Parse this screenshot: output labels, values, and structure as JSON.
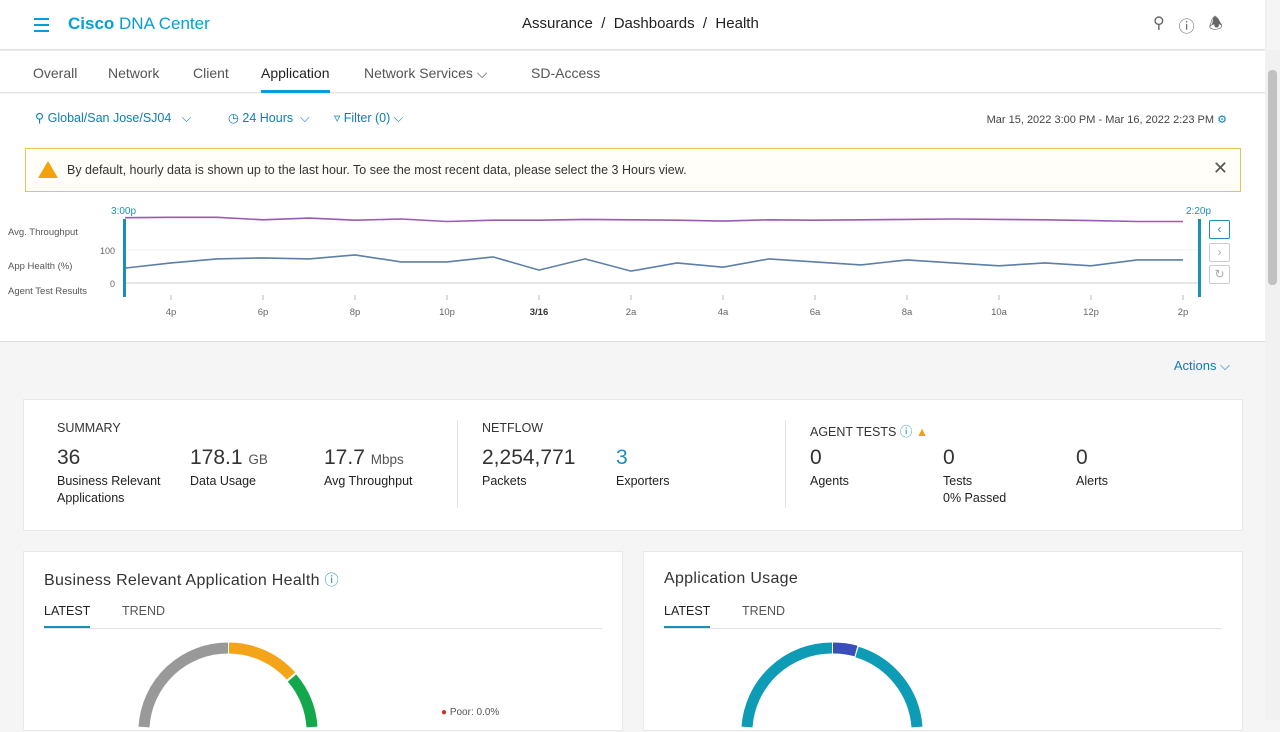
{
  "header": {
    "app_title_bold": "Cisco",
    "app_title": "DNA Center",
    "breadcrumb": "Assurance  /  Dashboards  /  Health",
    "icons": [
      "search-icon",
      "help-icon",
      "bell-icon"
    ]
  },
  "tabs": [
    {
      "label": "Overall"
    },
    {
      "label": "Network"
    },
    {
      "label": "Client"
    },
    {
      "label": "Application",
      "active": true
    },
    {
      "label": "Network Services ⌵"
    },
    {
      "label": "SD-Access"
    }
  ],
  "filters": {
    "location": "Global/San Jose/SJ04",
    "time": "24 Hours",
    "filter": "Filter (0)",
    "range": "Mar 15, 2022 3:00 PM - Mar 16, 2022 2:23 PM"
  },
  "banner": {
    "text": "By default, hourly data is shown up to the last hour. To see the most recent data, please select the 3 Hours view."
  },
  "timeline": {
    "start_label": "3:00p",
    "end_label": "2:20p",
    "row_labels": [
      "Avg. Throughput",
      "App Health (%)",
      "Agent Test Results"
    ],
    "y_ticks": [
      "100",
      "0"
    ]
  },
  "chart_data": {
    "type": "line",
    "x_tick_labels": [
      "4p",
      "6p",
      "8p",
      "10p",
      "3/16",
      "2a",
      "4a",
      "6a",
      "8a",
      "10a",
      "12p",
      "2p"
    ],
    "x": [
      "3p",
      "4p",
      "5p",
      "6p",
      "7p",
      "8p",
      "9p",
      "10p",
      "11p",
      "12a",
      "1a",
      "2a",
      "3a",
      "4a",
      "5a",
      "6a",
      "7a",
      "8a",
      "9a",
      "10a",
      "11a",
      "12p",
      "1p",
      "2p"
    ],
    "ylim": [
      0,
      100
    ],
    "series": [
      {
        "label_ref": "App Health (%)",
        "color": "#5b7fa8",
        "values": [
          45,
          61,
          73,
          76,
          73,
          85,
          64,
          64,
          79,
          39,
          73,
          36,
          61,
          48,
          73,
          64,
          55,
          70,
          61,
          52,
          61,
          52,
          70,
          70
        ]
      },
      {
        "label_ref": "Avg. Throughput",
        "color": "#9b59b6",
        "values": [
          95,
          98,
          98,
          80,
          92,
          77,
          86,
          68,
          77,
          77,
          83,
          80,
          77,
          71,
          80,
          77,
          80,
          83,
          86,
          83,
          80,
          74,
          68,
          68
        ]
      }
    ]
  },
  "actions": "Actions ⌵",
  "summary": {
    "title": "SUMMARY",
    "items": [
      {
        "value": "36",
        "unit": "",
        "label": "Business Relevant Applications"
      },
      {
        "value": "178.1",
        "unit": "GB",
        "label": "Data Usage"
      },
      {
        "value": "17.7",
        "unit": "Mbps",
        "label": "Avg Throughput"
      }
    ]
  },
  "netflow": {
    "title": "NETFLOW",
    "items": [
      {
        "value": "2,254,771",
        "label": "Packets"
      },
      {
        "value": "3",
        "label": "Exporters"
      }
    ]
  },
  "agent_tests": {
    "title": "AGENT TESTS",
    "items": [
      {
        "value": "0",
        "label": "Agents"
      },
      {
        "value": "0",
        "label": "Tests",
        "sub": "0% Passed"
      },
      {
        "value": "0",
        "label": "Alerts"
      }
    ]
  },
  "health_card": {
    "title": "Business Relevant Application Health",
    "tabs": [
      "LATEST",
      "TREND"
    ],
    "legend": "Poor: 0.0%"
  },
  "usage_card": {
    "title": "Application Usage",
    "tabs": [
      "LATEST",
      "TREND"
    ]
  }
}
